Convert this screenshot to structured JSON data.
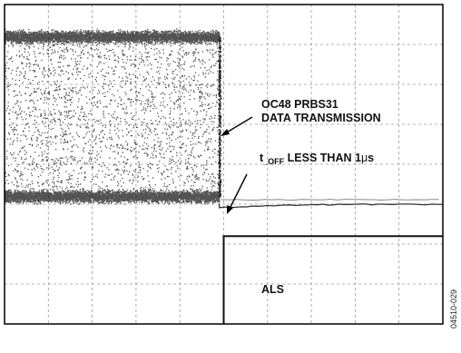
{
  "chart_data": {
    "type": "line",
    "title": "",
    "xlabel": "",
    "ylabel": "",
    "grid": true,
    "divisions": {
      "x": 10,
      "y": 8
    },
    "signals": [
      {
        "name": "OC48 PRBS31 data transmission",
        "kind": "noise-band",
        "upper_level_div": 7.2,
        "lower_level_div": 3.2,
        "cutoff_div": 4.9,
        "settled_level_div": 3.0
      },
      {
        "name": "ALS",
        "kind": "step",
        "low_level_div": 0.0,
        "high_level_div": 2.2,
        "step_at_div": 5.0
      }
    ],
    "annotations": {
      "data_line1": "OC48 PRBS31",
      "data_line2": "DATA TRANSMISSION",
      "toff_t": "t",
      "toff_sub": "_OFF",
      "toff_rest": " LESS THAN 1",
      "toff_mu": "μ",
      "toff_s": "s",
      "als": "ALS"
    },
    "figure_code": "04510-029"
  }
}
